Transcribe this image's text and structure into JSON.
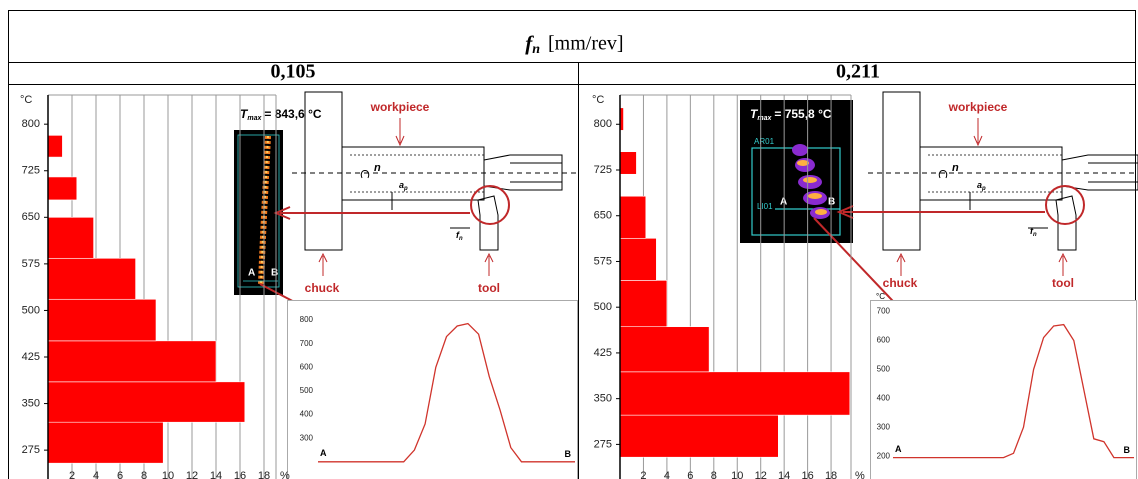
{
  "table": {
    "header": {
      "symbol": "f",
      "subscript": "n",
      "unit": "[mm/rev]"
    },
    "columns": [
      "0,105",
      "0,211"
    ]
  },
  "panels": [
    {
      "tmax": {
        "symbol": "T",
        "subscript": "max",
        "value": "= 843,6 °C"
      },
      "image_labels": [
        "A",
        "B"
      ],
      "schematic": {
        "workpiece": "workpiece",
        "chuck": "chuck",
        "tool": "tool",
        "n": "n",
        "a": "a",
        "a_sub": "p",
        "f": "f",
        "f_sub": "n"
      }
    },
    {
      "tmax": {
        "symbol": "T",
        "subscript": "max",
        "value": "= 755,8 °C"
      },
      "image_labels": [
        "A",
        "B",
        "AR01",
        "LI01"
      ],
      "schematic": {
        "workpiece": "workpiece",
        "chuck": "chuck",
        "tool": "tool",
        "n": "n",
        "a": "a",
        "a_sub": "p",
        "f": "f",
        "f_sub": "n"
      }
    }
  ],
  "chart_data": [
    {
      "type": "histogram",
      "color": "#ff0000",
      "bins": [
        254,
        320,
        385,
        451,
        518,
        584,
        650,
        678,
        715,
        747,
        782
      ],
      "values": [
        9.6,
        16.4,
        14,
        9,
        7.3,
        3.8,
        0,
        2.4,
        0,
        1.2
      ],
      "ylim": [
        243,
        847
      ],
      "yticks": [
        275,
        350,
        425,
        500,
        575,
        650,
        725,
        800
      ],
      "y_unit": "°C",
      "xlim": [
        0,
        19
      ],
      "xticks": [
        2,
        4,
        6,
        8,
        10,
        12,
        14,
        16,
        18
      ],
      "x_unit": "%",
      "grid": true
    },
    {
      "type": "histogram",
      "color": "#ff0000",
      "bins": [
        254,
        323,
        394,
        468,
        544,
        613,
        682,
        718,
        755,
        790,
        827
      ],
      "values": [
        13.5,
        19.6,
        7.6,
        4,
        3.1,
        2.2,
        0,
        1.4,
        0,
        0.3
      ],
      "ylim": [
        233,
        848
      ],
      "yticks": [
        275,
        350,
        425,
        500,
        575,
        650,
        725,
        800
      ],
      "y_unit": "°C",
      "xlim": [
        0,
        19.7
      ],
      "xticks": [
        2,
        4,
        6,
        8,
        10,
        12,
        14,
        16,
        18
      ],
      "x_unit": "%",
      "grid": true
    },
    {
      "type": "line",
      "color": "#d0342c",
      "categories": [
        null,
        null,
        null,
        null,
        null,
        null,
        null,
        null,
        null,
        null,
        null,
        null,
        null,
        null,
        null,
        null,
        null,
        null,
        null,
        null,
        null,
        null,
        null,
        null,
        null
      ],
      "values": [
        200,
        200,
        200,
        200,
        200,
        200,
        200,
        200,
        200,
        250,
        360,
        600,
        730,
        775,
        785,
        740,
        560,
        420,
        260,
        200,
        200,
        200,
        200,
        200,
        200
      ],
      "ylim": [
        127,
        885
      ],
      "yticks": [
        300,
        400,
        500,
        600,
        700,
        800
      ],
      "start_label": "A",
      "end_label": "B"
    },
    {
      "type": "line",
      "color": "#d0342c",
      "categories": [
        null,
        null,
        null,
        null,
        null,
        null,
        null,
        null,
        null,
        null,
        null,
        null,
        null,
        null,
        null,
        null,
        null,
        null,
        null,
        null,
        null,
        null,
        null,
        null,
        null
      ],
      "values": [
        195,
        195,
        195,
        195,
        195,
        195,
        195,
        195,
        195,
        195,
        195,
        195,
        210,
        300,
        500,
        610,
        650,
        655,
        600,
        430,
        260,
        250,
        195,
        195,
        195
      ],
      "ylim": [
        121,
        740
      ],
      "yticks": [
        200,
        300,
        400,
        500,
        600,
        700
      ],
      "y_unit": "°C",
      "start_label": "A",
      "end_label": "B"
    }
  ]
}
